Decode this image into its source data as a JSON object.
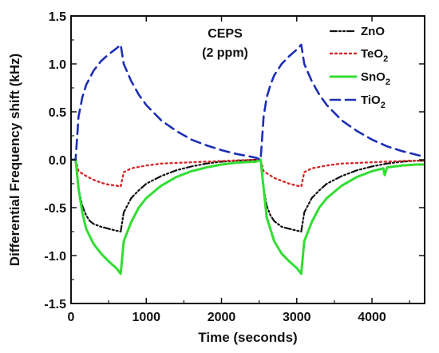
{
  "chart_data": {
    "type": "line",
    "title": "",
    "annotation_lines": [
      "CEPS",
      "(2 ppm)"
    ],
    "xlabel": "Time (seconds)",
    "ylabel": "Differential Frequency shift (kHz)",
    "xlim": [
      0,
      4700
    ],
    "ylim": [
      -1.5,
      1.5
    ],
    "x_ticks": [
      0,
      1000,
      2000,
      3000,
      4000
    ],
    "x_tick_labels": [
      "0",
      "1000",
      "2000",
      "3000",
      "4000"
    ],
    "y_ticks": [
      -1.5,
      -1.0,
      -0.5,
      0.0,
      0.5,
      1.0,
      1.5
    ],
    "y_tick_labels": [
      "-1.5",
      "-1.0",
      "-0.5",
      "0.0",
      "0.5",
      "1.0",
      "1.5"
    ],
    "grid": false,
    "legend_position": "top-right",
    "series": [
      {
        "name": "ZnO",
        "name_base": "ZnO",
        "name_sub": "",
        "color": "#111111",
        "style": "dash-dot-dot",
        "x": [
          0,
          60,
          100,
          150,
          200,
          250,
          300,
          400,
          500,
          600,
          660,
          700,
          800,
          900,
          1000,
          1200,
          1400,
          1600,
          1800,
          2000,
          2200,
          2460,
          2520,
          2560,
          2600,
          2650,
          2700,
          2800,
          2900,
          3000,
          3060,
          3100,
          3200,
          3300,
          3400,
          3600,
          3800,
          4000,
          4200,
          4400,
          4600,
          4700
        ],
        "y": [
          0.0,
          0.0,
          -0.3,
          -0.48,
          -0.58,
          -0.64,
          -0.67,
          -0.7,
          -0.72,
          -0.74,
          -0.75,
          -0.55,
          -0.4,
          -0.32,
          -0.25,
          -0.17,
          -0.11,
          -0.07,
          -0.04,
          -0.02,
          -0.01,
          0.0,
          0.0,
          -0.3,
          -0.48,
          -0.58,
          -0.64,
          -0.7,
          -0.72,
          -0.74,
          -0.75,
          -0.55,
          -0.4,
          -0.32,
          -0.25,
          -0.17,
          -0.11,
          -0.07,
          -0.04,
          -0.02,
          -0.01,
          -0.01
        ]
      },
      {
        "name": "TeO2",
        "name_base": "TeO",
        "name_sub": "2",
        "color": "#d42a2a",
        "style": "dotted",
        "x": [
          0,
          60,
          100,
          200,
          300,
          400,
          500,
          600,
          660,
          700,
          800,
          1000,
          1200,
          1500,
          1800,
          2100,
          2460,
          2520,
          2560,
          2700,
          2800,
          2900,
          3000,
          3060,
          3100,
          3200,
          3400,
          3600,
          3900,
          4200,
          4500,
          4700
        ],
        "y": [
          0.0,
          0.0,
          -0.12,
          -0.17,
          -0.21,
          -0.24,
          -0.26,
          -0.27,
          -0.28,
          -0.13,
          -0.09,
          -0.06,
          -0.04,
          -0.03,
          -0.02,
          -0.01,
          0.0,
          0.0,
          -0.12,
          -0.19,
          -0.22,
          -0.25,
          -0.27,
          -0.28,
          -0.13,
          -0.09,
          -0.06,
          -0.04,
          -0.03,
          -0.02,
          -0.01,
          -0.01
        ]
      },
      {
        "name": "SnO2",
        "name_base": "SnO",
        "name_sub": "2",
        "color": "#33dd33",
        "style": "solid",
        "x": [
          0,
          60,
          100,
          150,
          200,
          300,
          400,
          500,
          600,
          660,
          700,
          800,
          900,
          1000,
          1200,
          1400,
          1600,
          1800,
          2000,
          2200,
          2460,
          2520,
          2560,
          2600,
          2700,
          2800,
          2900,
          3000,
          3060,
          3100,
          3200,
          3300,
          3400,
          3600,
          3800,
          4000,
          4150,
          4170,
          4200,
          4400,
          4600,
          4700
        ],
        "y": [
          0.0,
          0.0,
          -0.3,
          -0.55,
          -0.72,
          -0.88,
          -0.98,
          -1.06,
          -1.13,
          -1.19,
          -0.85,
          -0.65,
          -0.5,
          -0.4,
          -0.27,
          -0.18,
          -0.12,
          -0.08,
          -0.05,
          -0.03,
          -0.02,
          0.0,
          -0.3,
          -0.6,
          -0.85,
          -0.98,
          -1.06,
          -1.13,
          -1.19,
          -0.85,
          -0.65,
          -0.5,
          -0.4,
          -0.27,
          -0.18,
          -0.12,
          -0.09,
          -0.16,
          -0.08,
          -0.06,
          -0.05,
          -0.05
        ]
      },
      {
        "name": "TiO2",
        "name_base": "TiO",
        "name_sub": "2",
        "color": "#1c2fb5",
        "style": "dashed",
        "x": [
          0,
          60,
          100,
          150,
          200,
          300,
          400,
          500,
          600,
          660,
          700,
          800,
          900,
          1000,
          1200,
          1400,
          1600,
          1800,
          2000,
          2200,
          2400,
          2460,
          2520,
          2560,
          2600,
          2650,
          2700,
          2800,
          2900,
          3000,
          3060,
          3100,
          3200,
          3300,
          3400,
          3600,
          3800,
          4000,
          4200,
          4400,
          4600,
          4700
        ],
        "y": [
          0.0,
          0.0,
          0.45,
          0.65,
          0.78,
          0.93,
          1.03,
          1.1,
          1.16,
          1.2,
          1.0,
          0.82,
          0.68,
          0.57,
          0.41,
          0.3,
          0.21,
          0.15,
          0.1,
          0.06,
          0.03,
          0.02,
          0.0,
          0.45,
          0.65,
          0.78,
          0.88,
          1.0,
          1.08,
          1.15,
          1.2,
          1.0,
          0.82,
          0.68,
          0.57,
          0.41,
          0.3,
          0.21,
          0.14,
          0.09,
          0.05,
          0.03
        ]
      }
    ]
  }
}
